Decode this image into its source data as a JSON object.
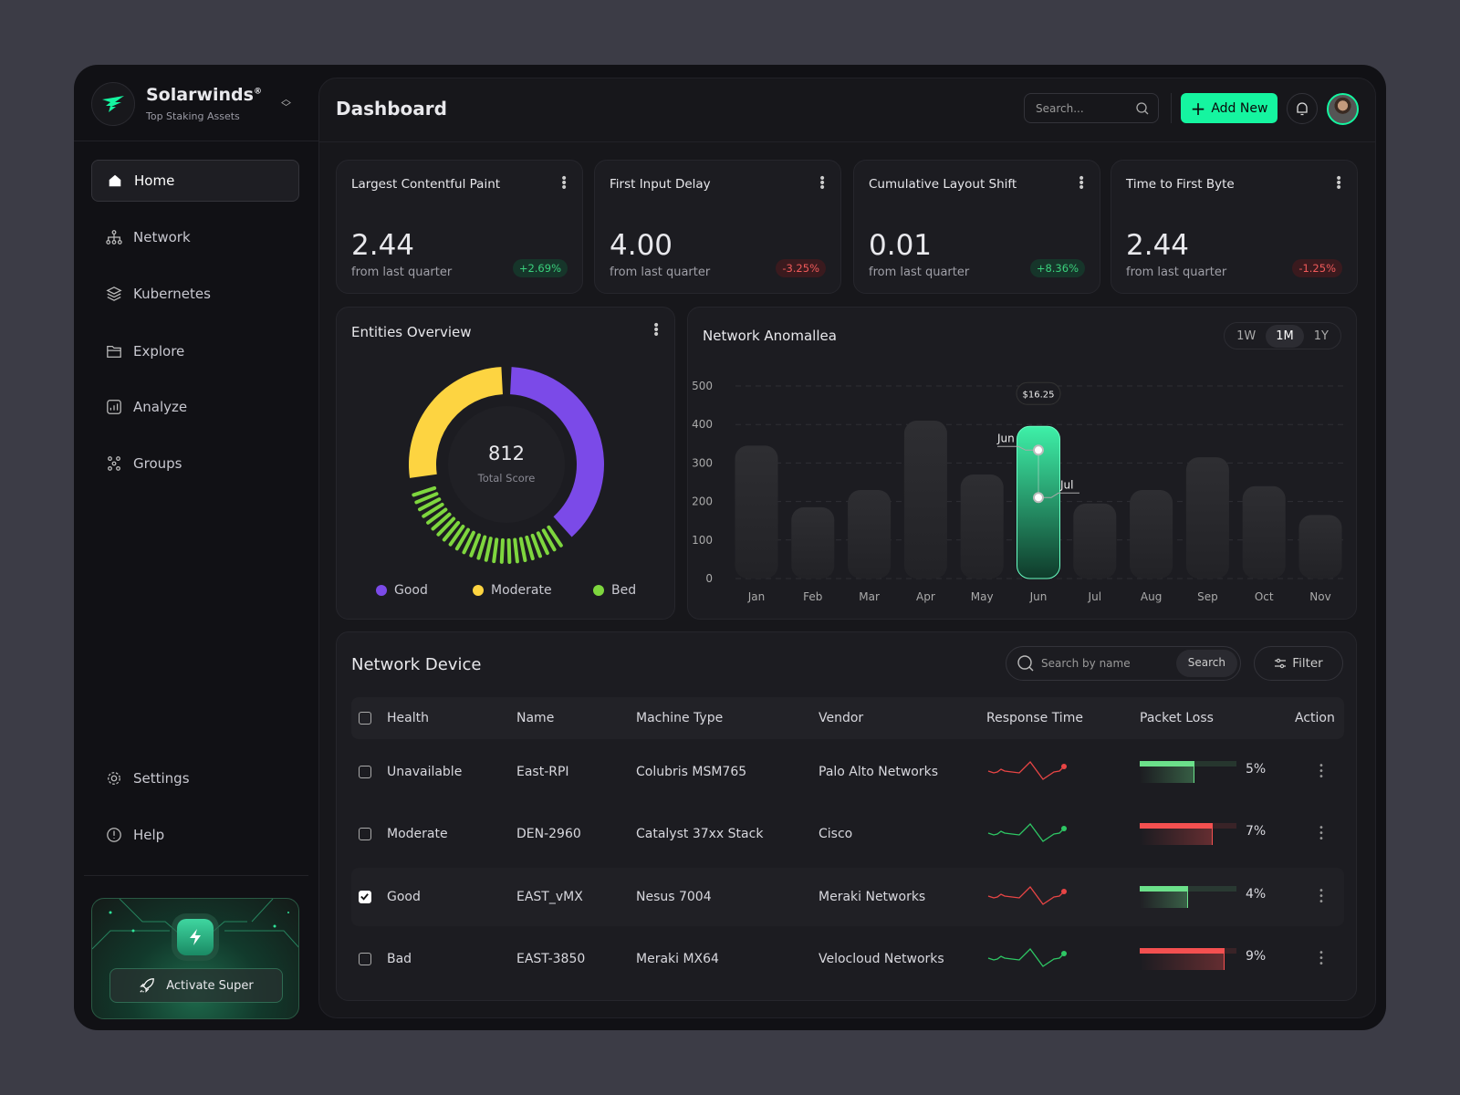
{
  "brand": {
    "name": "Solarwinds",
    "reg": "®",
    "tagline": "Top Staking Assets",
    "accent": "#15f5a0"
  },
  "sidebar": {
    "items": [
      {
        "label": "Home",
        "icon": "home-icon",
        "active": true
      },
      {
        "label": "Network",
        "icon": "network-icon"
      },
      {
        "label": "Kubernetes",
        "icon": "layers-icon"
      },
      {
        "label": "Explore",
        "icon": "folder-icon"
      },
      {
        "label": "Analyze",
        "icon": "analytics-icon"
      },
      {
        "label": "Groups",
        "icon": "groups-icon"
      }
    ],
    "bottom": [
      {
        "label": "Settings",
        "icon": "gear-icon"
      },
      {
        "label": "Help",
        "icon": "help-icon"
      }
    ],
    "activate_label": "Activate Super"
  },
  "header": {
    "title": "Dashboard",
    "search_placeholder": "Search...",
    "add_new": "Add New"
  },
  "kpis": [
    {
      "title": "Largest Contentful Paint",
      "value": "2.44",
      "sub": "from last quarter",
      "change": "+2.69%",
      "trend": "up"
    },
    {
      "title": "First Input Delay",
      "value": "4.00",
      "sub": "from last quarter",
      "change": "-3.25%",
      "trend": "down"
    },
    {
      "title": "Cumulative Layout Shift",
      "value": "0.01",
      "sub": "from last quarter",
      "change": "+8.36%",
      "trend": "up"
    },
    {
      "title": "Time to First Byte",
      "value": "2.44",
      "sub": "from last quarter",
      "change": "-1.25%",
      "trend": "down"
    }
  ],
  "entities": {
    "title": "Entities Overview",
    "total": "812",
    "total_label": "Total Score",
    "legend": [
      {
        "label": "Good",
        "color": "#7b4ae8"
      },
      {
        "label": "Moderate",
        "color": "#fdd441"
      },
      {
        "label": "Bed",
        "color": "#7ed63e"
      }
    ]
  },
  "chart_data": {
    "type": "bar",
    "title": "Network Anomallea",
    "ranges": [
      "1W",
      "1M",
      "1Y"
    ],
    "selected_range": "1M",
    "categories": [
      "Jan",
      "Feb",
      "Mar",
      "Apr",
      "May",
      "Jun",
      "Jul",
      "Aug",
      "Sep",
      "Oct",
      "Nov"
    ],
    "values": [
      345,
      185,
      230,
      410,
      270,
      395,
      195,
      230,
      315,
      240,
      165
    ],
    "highlight": "Jun",
    "tooltip": "$16.25",
    "markers": [
      "Jun",
      "Jul"
    ],
    "ylim": [
      0,
      500
    ],
    "yticks": [
      0,
      100,
      200,
      300,
      400,
      500
    ],
    "grid": true
  },
  "table": {
    "title": "Network Device",
    "search_placeholder": "Search by name",
    "search_btn": "Search",
    "filter": "Filter",
    "columns": [
      "Health",
      "Name",
      "Machine Type",
      "Vendor",
      "Response Time",
      "Packet Loss",
      "Action"
    ],
    "rows": [
      {
        "health": "Unavailable",
        "name": "East-RPI",
        "machine": "Colubris MSM765",
        "vendor": "Palo Alto Networks",
        "trend_color": "#e84545",
        "loss": "5%",
        "loss_fraction": 0.57,
        "loss_color": "#6be08a",
        "checked": false
      },
      {
        "health": "Moderate",
        "name": "DEN-2960",
        "machine": "Catalyst 37xx Stack",
        "vendor": "Cisco",
        "trend_color": "#2ec764",
        "loss": "7%",
        "loss_fraction": 0.75,
        "loss_color": "#f45050",
        "checked": false
      },
      {
        "health": "Good",
        "name": "EAST_vMX",
        "machine": "Nesus 7004",
        "vendor": "Meraki Networks",
        "trend_color": "#e84545",
        "loss": "4%",
        "loss_fraction": 0.5,
        "loss_color": "#6be08a",
        "checked": true
      },
      {
        "health": "Bad",
        "name": "EAST-3850",
        "machine": "Meraki MX64",
        "vendor": "Velocloud Networks",
        "trend_color": "#2ec764",
        "loss": "9%",
        "loss_fraction": 0.88,
        "loss_color": "#f45050",
        "checked": false
      }
    ]
  }
}
